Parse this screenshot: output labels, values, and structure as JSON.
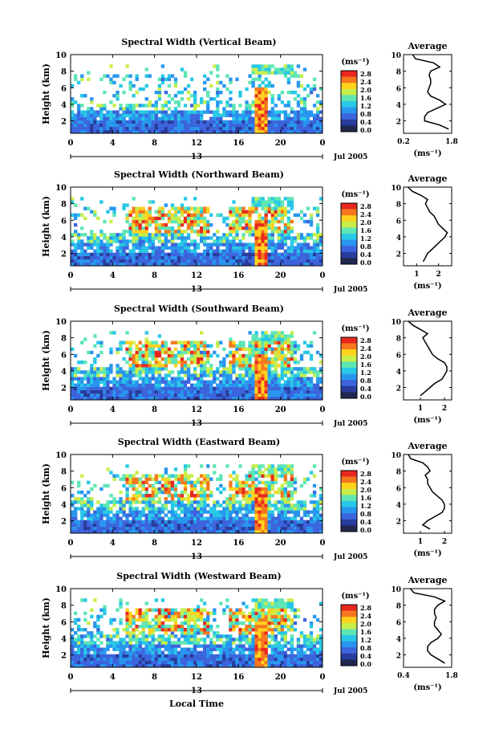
{
  "panel_title_template_note": "",
  "colorbar": {
    "unit": "(ms⁻¹)",
    "ticks": [
      "2.8",
      "2.4",
      "2.0",
      "1.6",
      "1.2",
      "0.8",
      "0.4",
      "0.0"
    ],
    "colors": [
      "#e8281e",
      "#f5781e",
      "#ffd21e",
      "#c8ee4a",
      "#5ee6b4",
      "#28c8e6",
      "#2896ee",
      "#3c64dc",
      "#283c9c",
      "#202850"
    ]
  },
  "common": {
    "ylabel": "Height (km)",
    "yticks": [
      "10",
      "8",
      "6",
      "4",
      "2"
    ],
    "xticks": [
      "0",
      "4",
      "8",
      "12",
      "16",
      "20",
      "0"
    ],
    "date_day": "13",
    "date_label": "Jul 2005",
    "xlabel": "Local Time",
    "avg_title": "Average",
    "avg_unit": "(ms⁻¹)"
  },
  "chart_data": [
    {
      "type": "heatmap",
      "title": "Spectral Width (Vertical Beam)",
      "xlabel": "Local Time",
      "ylabel": "Height (km)",
      "xlim": [
        0,
        24
      ],
      "ylim": [
        0.5,
        10
      ],
      "colorbar_range": [
        0.0,
        3.0
      ],
      "average_profile": {
        "xlabel": "(ms⁻¹)",
        "xticks": [
          "0.2",
          "1.8"
        ],
        "xlim": [
          0.2,
          1.8
        ],
        "height": [
          1,
          1.5,
          2,
          2.5,
          3,
          3.5,
          4,
          4.5,
          5,
          5.5,
          6,
          6.5,
          7,
          7.5,
          8,
          8.5,
          9,
          9.5,
          10
        ],
        "values": [
          1.7,
          1.4,
          0.9,
          0.9,
          1.0,
          1.3,
          1.6,
          1.4,
          1.1,
          1.0,
          1.05,
          1.1,
          1.1,
          1.05,
          1.1,
          1.4,
          1.2,
          0.6,
          0.5
        ]
      }
    },
    {
      "type": "heatmap",
      "title": "Spectral Width (Northward Beam)",
      "xlabel": "Local Time",
      "ylabel": "Height (km)",
      "xlim": [
        0,
        24
      ],
      "ylim": [
        0.5,
        10
      ],
      "colorbar_range": [
        0.0,
        3.0
      ],
      "average_profile": {
        "xlabel": "(ms⁻¹)",
        "xticks": [
          "1",
          "2"
        ],
        "xlim": [
          0.4,
          2.6
        ],
        "height": [
          1,
          1.5,
          2,
          2.5,
          3,
          3.5,
          4,
          4.5,
          5,
          5.5,
          6,
          6.5,
          7,
          7.5,
          8,
          8.5,
          9,
          9.5,
          10
        ],
        "values": [
          1.3,
          1.4,
          1.5,
          1.7,
          1.9,
          2.1,
          2.3,
          2.4,
          2.2,
          2.0,
          1.9,
          1.8,
          1.6,
          1.5,
          1.4,
          1.5,
          1.2,
          0.8,
          0.6
        ]
      }
    },
    {
      "type": "heatmap",
      "title": "Spectral Width (Southward Beam)",
      "xlabel": "Local Time",
      "ylabel": "Height (km)",
      "xlim": [
        0,
        24
      ],
      "ylim": [
        0.5,
        10
      ],
      "colorbar_range": [
        0.0,
        3.0
      ],
      "average_profile": {
        "xlabel": "(ms⁻¹)",
        "xticks": [
          "1",
          "2"
        ],
        "xlim": [
          0.3,
          2.3
        ],
        "height": [
          1,
          1.5,
          2,
          2.5,
          3,
          3.5,
          4,
          4.5,
          5,
          5.5,
          6,
          6.5,
          7,
          7.5,
          8,
          8.5,
          9,
          9.5,
          10
        ],
        "values": [
          1.0,
          1.2,
          1.4,
          1.6,
          1.9,
          2.0,
          2.1,
          2.1,
          2.0,
          1.7,
          1.5,
          1.4,
          1.3,
          1.2,
          1.1,
          1.3,
          1.0,
          0.7,
          0.5
        ]
      }
    },
    {
      "type": "heatmap",
      "title": "Spectral Width (Eastward Beam)",
      "xlabel": "Local Time",
      "ylabel": "Height (km)",
      "xlim": [
        0,
        24
      ],
      "ylim": [
        0.5,
        10
      ],
      "colorbar_range": [
        0.0,
        3.0
      ],
      "average_profile": {
        "xlabel": "(ms⁻¹)",
        "xticks": [
          "1",
          "2"
        ],
        "xlim": [
          0.3,
          2.3
        ],
        "height": [
          1,
          1.5,
          2,
          2.5,
          3,
          3.5,
          4,
          4.5,
          5,
          5.5,
          6,
          6.5,
          7,
          7.5,
          8,
          8.5,
          9,
          9.5,
          10
        ],
        "values": [
          1.4,
          1.1,
          1.3,
          1.6,
          1.9,
          2.0,
          2.0,
          1.9,
          1.7,
          1.5,
          1.4,
          1.3,
          1.3,
          1.2,
          1.4,
          1.3,
          1.1,
          0.6,
          0.5
        ]
      }
    },
    {
      "type": "heatmap",
      "title": "Spectral Width (Westward Beam)",
      "xlabel": "Local Time",
      "ylabel": "Height (km)",
      "xlim": [
        0,
        24
      ],
      "ylim": [
        0.5,
        10
      ],
      "colorbar_range": [
        0.0,
        3.0
      ],
      "average_profile": {
        "xlabel": "(ms⁻¹)",
        "xticks": [
          "0.4",
          "1.8"
        ],
        "xlim": [
          0.4,
          1.8
        ],
        "height": [
          1,
          1.5,
          2,
          2.5,
          3,
          3.5,
          4,
          4.5,
          5,
          5.5,
          6,
          6.5,
          7,
          7.5,
          8,
          8.5,
          9,
          9.5,
          10
        ],
        "values": [
          1.6,
          1.4,
          1.2,
          1.1,
          1.1,
          1.2,
          1.4,
          1.5,
          1.4,
          1.3,
          1.3,
          1.35,
          1.3,
          1.3,
          1.4,
          1.6,
          1.3,
          0.7,
          0.6
        ]
      }
    }
  ]
}
